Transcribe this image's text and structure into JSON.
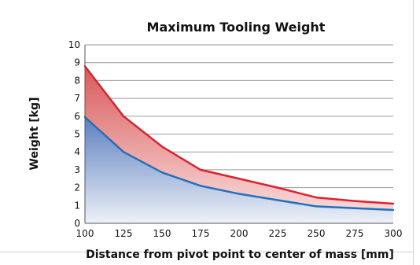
{
  "chart_data": {
    "type": "area",
    "title": "Maximum Tooling Weight",
    "xlabel": "Distance from pivot point to center of mass [mm]",
    "ylabel": "Weight [kg]",
    "xlim": [
      100,
      300
    ],
    "ylim": [
      0,
      10
    ],
    "xticks": [
      100,
      125,
      150,
      175,
      200,
      225,
      250,
      275,
      300
    ],
    "yticks": [
      0,
      1,
      2,
      3,
      4,
      5,
      6,
      7,
      8,
      9,
      10
    ],
    "grid": "horizontal",
    "series": [
      {
        "color": "#e0202e",
        "fill_top": "#d85a5a",
        "fill_bottom": "#fbe3e3",
        "points": [
          [
            100,
            8.8
          ],
          [
            125,
            6.0
          ],
          [
            150,
            4.3
          ],
          [
            175,
            3.0
          ],
          [
            200,
            2.5
          ],
          [
            225,
            2.0
          ],
          [
            250,
            1.45
          ],
          [
            275,
            1.25
          ],
          [
            300,
            1.1
          ]
        ]
      },
      {
        "color": "#2070c0",
        "fill_top": "#5c7fbe",
        "fill_bottom": "#edf1f8",
        "points": [
          [
            100,
            5.95
          ],
          [
            125,
            4.0
          ],
          [
            150,
            2.85
          ],
          [
            175,
            2.1
          ],
          [
            200,
            1.65
          ],
          [
            225,
            1.3
          ],
          [
            250,
            0.95
          ],
          [
            275,
            0.85
          ],
          [
            300,
            0.75
          ]
        ]
      }
    ]
  }
}
